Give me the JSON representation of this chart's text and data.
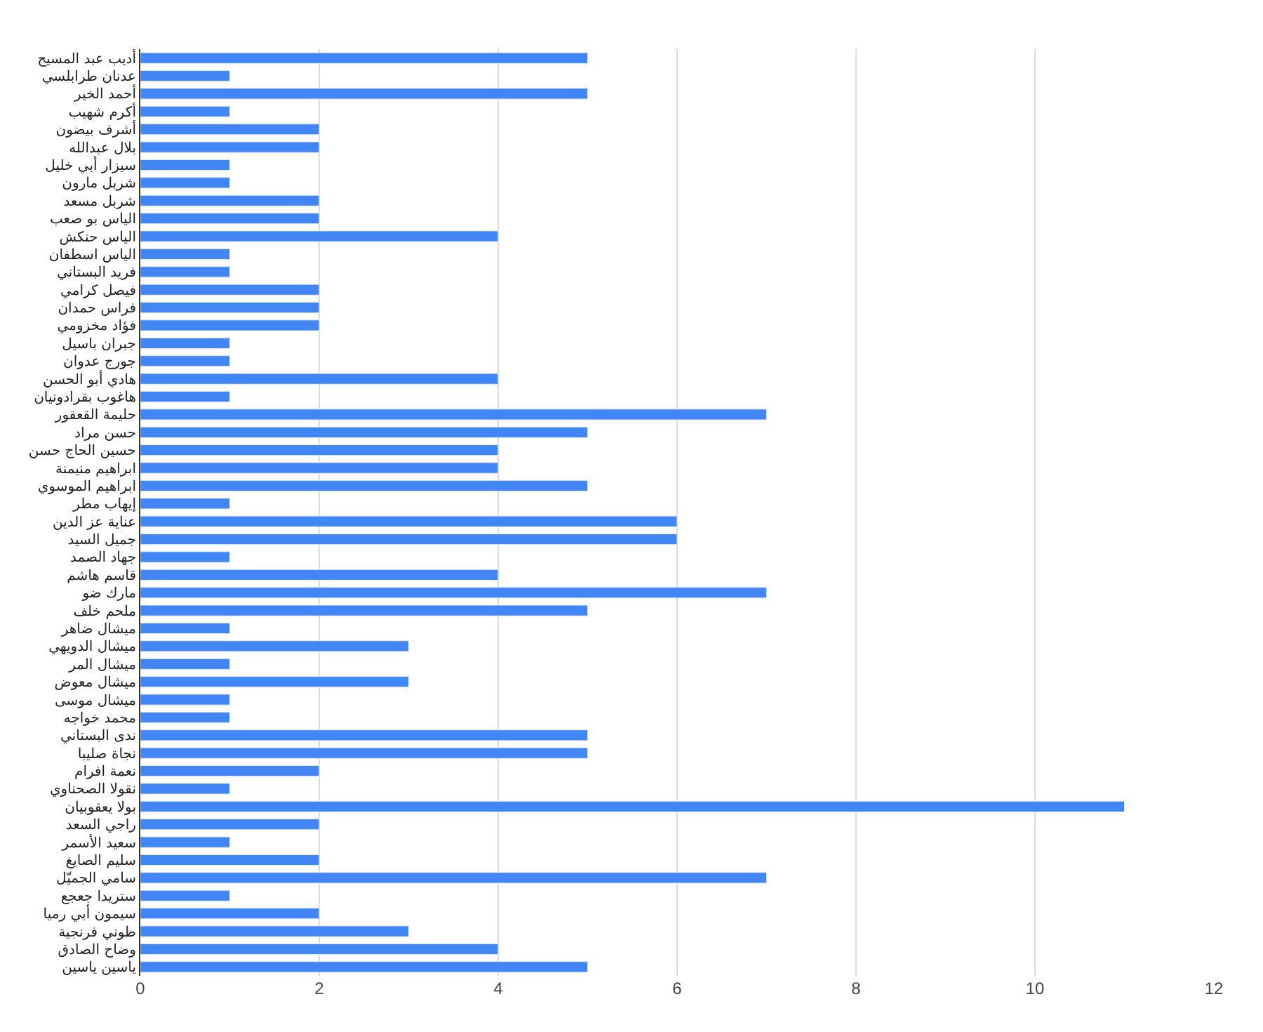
{
  "chart_data": {
    "type": "bar",
    "orientation": "horizontal",
    "color": "#4285f4",
    "categories": [
      "أديب عبد المسيح",
      "عدنان طرابلسي",
      "أحمد الخير",
      "أكرم شهيب",
      "أشرف بيضون",
      "بلال عبدالله",
      "سيزار أبي خليل",
      "شربل مارون",
      "شربل مسعد",
      "الياس بو صعب",
      "الياس حنكش",
      "الياس اسطفان",
      "فريد البستاني",
      "فيصل كرامي",
      "فراس حمدان",
      "فؤاد مخزومي",
      "جبران باسيل",
      "جورج عدوان",
      "هادي أبو الحسن",
      "هاغوب بقرادونيان",
      "حليمة القعقور",
      "حسن مراد",
      "حسين الحاج حسن",
      "ابراهيم منيمنة",
      "ابراهيم الموسوي",
      "إيهاب مطر",
      "عناية عز الدين",
      "جميل السيد",
      "جهاد الصمد",
      "قاسم هاشم",
      "مارك ضو",
      "ملحم خلف",
      "ميشال ضاهر",
      "ميشال الدويهي",
      "ميشال المر",
      "ميشال معوض",
      "ميشال موسى",
      "محمد خواجه",
      "ندى البستاني",
      "نجاة صليبا",
      "نعمة افرام",
      "نقولا الصحناوي",
      "بولا يعقوبيان",
      "راجي السعد",
      "سعيد الأسمر",
      "سليم الصايغ",
      "سامي الجميّل",
      "ستريدا جعجع",
      "سيمون أبي رميا",
      "طوني فرنجية",
      "وضاح الصادق",
      "ياسين ياسين"
    ],
    "values": [
      5,
      1,
      5,
      1,
      2,
      2,
      1,
      1,
      2,
      2,
      4,
      1,
      1,
      2,
      2,
      2,
      1,
      1,
      4,
      1,
      7,
      5,
      4,
      4,
      5,
      1,
      6,
      6,
      1,
      4,
      7,
      5,
      1,
      3,
      1,
      3,
      1,
      1,
      5,
      5,
      2,
      1,
      11,
      2,
      1,
      2,
      7,
      1,
      2,
      3,
      4,
      5
    ],
    "xlim": [
      0,
      12
    ],
    "xticks": [
      0,
      2,
      4,
      6,
      8,
      10,
      12
    ],
    "grid": "x"
  }
}
